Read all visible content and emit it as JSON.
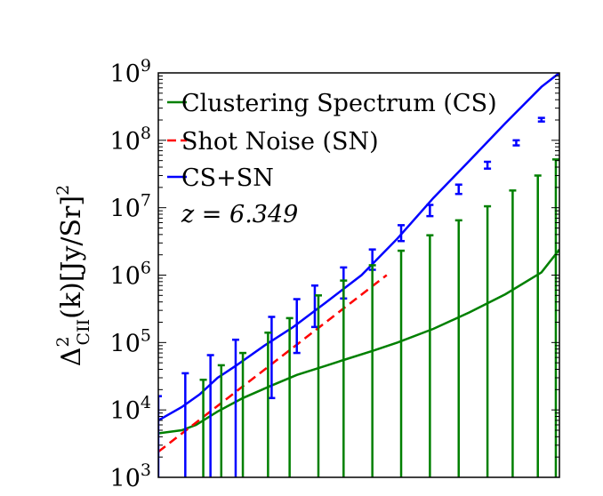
{
  "chart_data": {
    "type": "line",
    "title": "",
    "xlabel": "",
    "ylabel": {
      "base": "Δ",
      "sup": "2",
      "sub": "CII",
      "rest": "(k)[Jy/Sr]",
      "rest_sup": "2"
    },
    "annotation": "z = 6.349",
    "y_scale": "log",
    "x_scale": "log",
    "ylim": [
      1000,
      1000000000
    ],
    "xlim": [
      -0.015,
      1.1
    ],
    "y_ticks": [
      {
        "exp": "3",
        "value": 1000
      },
      {
        "exp": "4",
        "value": 10000
      },
      {
        "exp": "5",
        "value": 100000
      },
      {
        "exp": "6",
        "value": 1000000
      },
      {
        "exp": "7",
        "value": 10000000
      },
      {
        "exp": "8",
        "value": 100000000
      },
      {
        "exp": "9",
        "value": 1000000000
      }
    ],
    "y_tick_base": "10",
    "legend": {
      "placement": "upper-left",
      "entries": [
        {
          "label": "Clustering Spectrum (CS)",
          "color": "#008000",
          "style": "solid"
        },
        {
          "label": "Shot Noise (SN)",
          "color": "#ff0000",
          "style": "dashed"
        },
        {
          "label": "CS+SN",
          "color": "#0000ff",
          "style": "solid"
        }
      ]
    },
    "series": [
      {
        "key": "cs",
        "color": "#008000",
        "style": "solid",
        "x": [
          -0.015,
          0.05,
          0.09,
          0.15,
          0.22,
          0.3,
          0.37,
          0.45,
          0.5,
          0.58,
          0.65,
          0.75,
          0.85,
          0.95,
          1.05,
          1.1
        ],
        "y": [
          4500,
          5000,
          6000,
          9500,
          15000,
          23000,
          33000,
          45000,
          55000,
          75000,
          100000,
          160000,
          280000,
          520000,
          1100000,
          2400000
        ]
      },
      {
        "key": "sn",
        "color": "#ff0000",
        "style": "dashed",
        "x": [
          -0.015,
          0.62
        ],
        "y": [
          2400,
          1000000
        ]
      },
      {
        "key": "cs_sn",
        "color": "#0000ff",
        "style": "solid",
        "x": [
          -0.015,
          0.05,
          0.1,
          0.15,
          0.2,
          0.28,
          0.36,
          0.45,
          0.55,
          0.65,
          0.75,
          0.85,
          0.95,
          1.05,
          1.1
        ],
        "y": [
          7000,
          11000,
          17000,
          30000,
          45000,
          90000,
          170000,
          390000,
          1000000,
          3500000,
          14000000,
          50000000,
          180000000,
          620000000,
          1000000000
        ]
      }
    ],
    "errorbars": [
      {
        "color": "#0000ff",
        "x": -0.015,
        "y": 7000,
        "lo": 1000,
        "hi": 16000
      },
      {
        "color": "#0000ff",
        "x": 0.06,
        "y": 12000,
        "lo": 1000,
        "hi": 35000
      },
      {
        "color": "#0000ff",
        "x": 0.13,
        "y": 24000,
        "lo": 1000,
        "hi": 65000
      },
      {
        "color": "#0000ff",
        "x": 0.2,
        "y": 45000,
        "lo": 1000,
        "hi": 110000
      },
      {
        "color": "#0000ff",
        "x": 0.3,
        "y": 85000,
        "lo": 15000,
        "hi": 240000
      },
      {
        "color": "#0000ff",
        "x": 0.37,
        "y": 150000,
        "lo": 70000,
        "hi": 440000
      },
      {
        "color": "#0000ff",
        "x": 0.42,
        "y": 300000,
        "lo": 170000,
        "hi": 700000
      },
      {
        "color": "#0000ff",
        "x": 0.5,
        "y": 700000,
        "lo": 450000,
        "hi": 1300000
      },
      {
        "color": "#0000ff",
        "x": 0.58,
        "y": 1800000,
        "lo": 1200000,
        "hi": 2400000
      },
      {
        "color": "#0000ff",
        "x": 0.66,
        "y": 4200000,
        "lo": 3200000,
        "hi": 5500000
      },
      {
        "color": "#0000ff",
        "x": 0.74,
        "y": 9000000,
        "lo": 7500000,
        "hi": 11000000
      },
      {
        "color": "#0000ff",
        "x": 0.82,
        "y": 19000000,
        "lo": 16000000,
        "hi": 22000000
      },
      {
        "color": "#0000ff",
        "x": 0.9,
        "y": 43000000,
        "lo": 38000000,
        "hi": 48000000
      },
      {
        "color": "#0000ff",
        "x": 0.98,
        "y": 92000000,
        "lo": 84000000,
        "hi": 100000000
      },
      {
        "color": "#0000ff",
        "x": 1.05,
        "y": 200000000,
        "lo": 190000000,
        "hi": 215000000
      },
      {
        "color": "#0000ff",
        "x": 1.11,
        "y": 430000000,
        "lo": 410000000,
        "hi": 450000000
      },
      {
        "color": "#008000",
        "x": 0.11,
        "y": 9000,
        "lo": 1000,
        "hi": 28000
      },
      {
        "color": "#008000",
        "x": 0.16,
        "y": 12000,
        "lo": 1000,
        "hi": 46000
      },
      {
        "color": "#008000",
        "x": 0.22,
        "y": 15000,
        "lo": 1000,
        "hi": 70000
      },
      {
        "color": "#008000",
        "x": 0.29,
        "y": 21000,
        "lo": 1000,
        "hi": 140000
      },
      {
        "color": "#008000",
        "x": 0.35,
        "y": 30000,
        "lo": 1000,
        "hi": 230000
      },
      {
        "color": "#008000",
        "x": 0.43,
        "y": 42000,
        "lo": 1000,
        "hi": 500000
      },
      {
        "color": "#008000",
        "x": 0.5,
        "y": 55000,
        "lo": 1000,
        "hi": 830000
      },
      {
        "color": "#008000",
        "x": 0.58,
        "y": 75000,
        "lo": 1000,
        "hi": 1400000
      },
      {
        "color": "#008000",
        "x": 0.66,
        "y": 100000,
        "lo": 1000,
        "hi": 2300000
      },
      {
        "color": "#008000",
        "x": 0.74,
        "y": 140000,
        "lo": 1000,
        "hi": 3900000
      },
      {
        "color": "#008000",
        "x": 0.82,
        "y": 200000,
        "lo": 1000,
        "hi": 6500000
      },
      {
        "color": "#008000",
        "x": 0.9,
        "y": 300000,
        "lo": 1000,
        "hi": 10500000
      },
      {
        "color": "#008000",
        "x": 0.97,
        "y": 450000,
        "lo": 1000,
        "hi": 18000000
      },
      {
        "color": "#008000",
        "x": 1.04,
        "y": 700000,
        "lo": 1000,
        "hi": 30000000
      },
      {
        "color": "#008000",
        "x": 1.09,
        "y": 1100000,
        "lo": 1000,
        "hi": 52000000
      }
    ]
  }
}
